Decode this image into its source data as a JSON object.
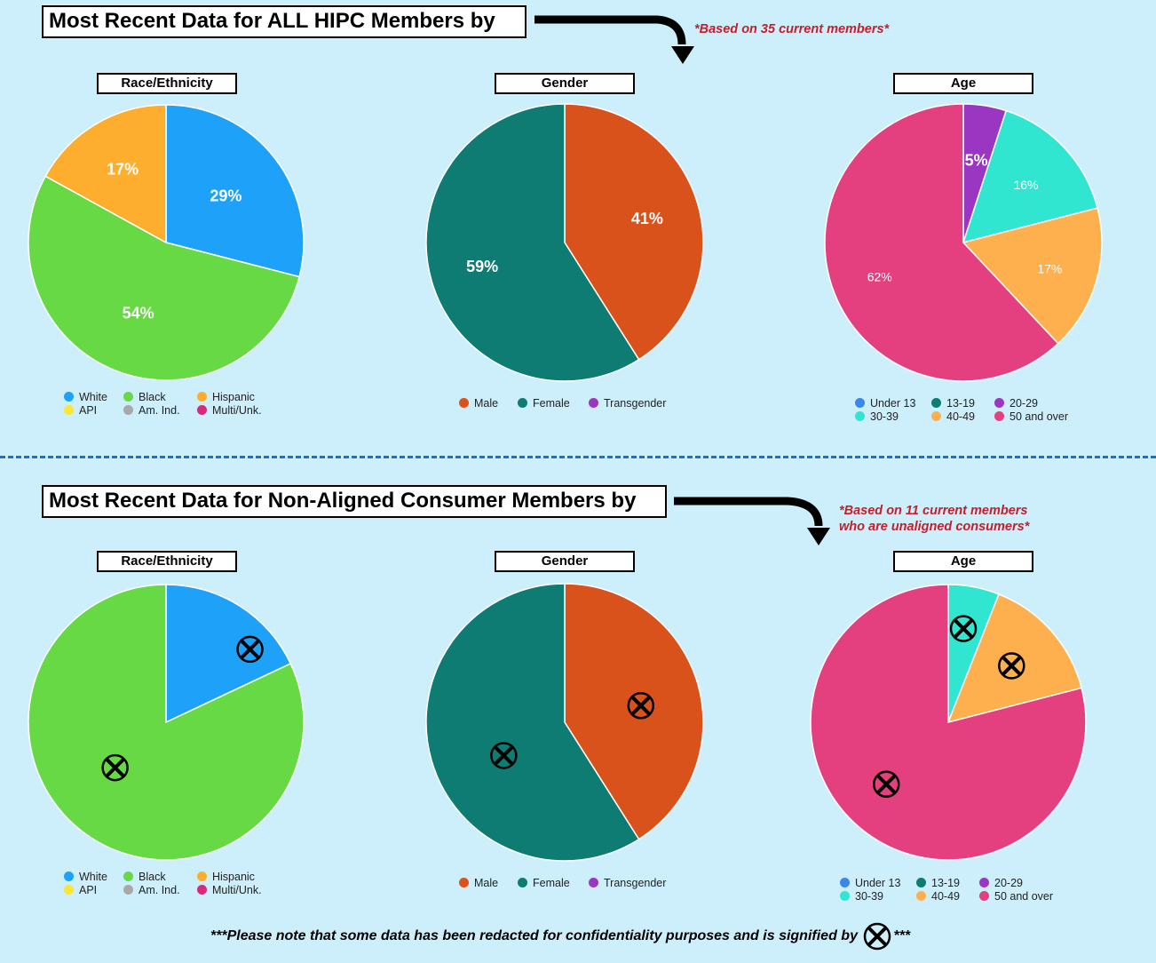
{
  "sections": [
    {
      "title": "Most Recent Data for ALL HIPC Members by",
      "note_lines": [
        "*Based on 35 current members*"
      ]
    },
    {
      "title": "Most Recent Data for Non-Aligned Consumer Members by",
      "note_lines": [
        "*Based on 11 current members",
        "who are unaligned consumers*"
      ]
    }
  ],
  "footer": {
    "before": "***Please note that some data has been redacted for confidentiality purposes and is signified by",
    "after": "***"
  },
  "chart_data": [
    {
      "type": "pie",
      "title": "Race/Ethnicity",
      "section": 0,
      "categories": [
        "White",
        "Black",
        "Hispanic",
        "API",
        "Am. Ind.",
        "Multi/Unk."
      ],
      "colors": [
        "#1ea2f9",
        "#66d944",
        "#feae2e",
        "#fae633",
        "#a8a8a8",
        "#d9287e"
      ],
      "values": [
        29,
        54,
        17,
        0,
        0,
        0
      ],
      "labels": [
        "29%",
        "54%",
        "17%",
        "",
        "",
        ""
      ],
      "label_style": "bold"
    },
    {
      "type": "pie",
      "title": "Gender",
      "section": 0,
      "categories": [
        "Male",
        "Female",
        "Transgender"
      ],
      "colors": [
        "#d9521b",
        "#0f7c74",
        "#9b36c3"
      ],
      "values": [
        41,
        59,
        0
      ],
      "labels": [
        "41%",
        "59%",
        ""
      ],
      "label_style": "bold"
    },
    {
      "type": "pie",
      "title": "Age",
      "section": 0,
      "categories": [
        "Under 13",
        "13-19",
        "20-29",
        "30-39",
        "40-49",
        "50 and over"
      ],
      "colors": [
        "#3b87e8",
        "#0f7c74",
        "#9b36c3",
        "#30e6d0",
        "#fdb04d",
        "#e43f7e"
      ],
      "values": [
        0,
        0,
        5,
        16,
        17,
        62
      ],
      "labels": [
        "",
        "",
        "5%",
        "16%",
        "17%",
        "62%"
      ],
      "label_style": "mixed"
    },
    {
      "type": "pie",
      "title": "Race/Ethnicity",
      "section": 1,
      "categories": [
        "White",
        "Black",
        "Hispanic",
        "API",
        "Am. Ind.",
        "Multi/Unk."
      ],
      "colors": [
        "#1ea2f9",
        "#66d944",
        "#feae2e",
        "#fae633",
        "#a8a8a8",
        "#d9287e"
      ],
      "values": [
        18,
        82,
        0,
        0,
        0,
        0
      ],
      "redacted": true
    },
    {
      "type": "pie",
      "title": "Gender",
      "section": 1,
      "categories": [
        "Male",
        "Female",
        "Transgender"
      ],
      "colors": [
        "#d9521b",
        "#0f7c74",
        "#9b36c3"
      ],
      "values": [
        41,
        59,
        0
      ],
      "redacted": true
    },
    {
      "type": "pie",
      "title": "Age",
      "section": 1,
      "categories": [
        "Under 13",
        "13-19",
        "20-29",
        "30-39",
        "40-49",
        "50 and over"
      ],
      "colors": [
        "#3b87e8",
        "#0f7c74",
        "#9b36c3",
        "#30e6d0",
        "#fdb04d",
        "#e43f7e"
      ],
      "values": [
        0,
        0,
        0,
        6,
        15,
        79
      ],
      "redacted": true
    }
  ]
}
